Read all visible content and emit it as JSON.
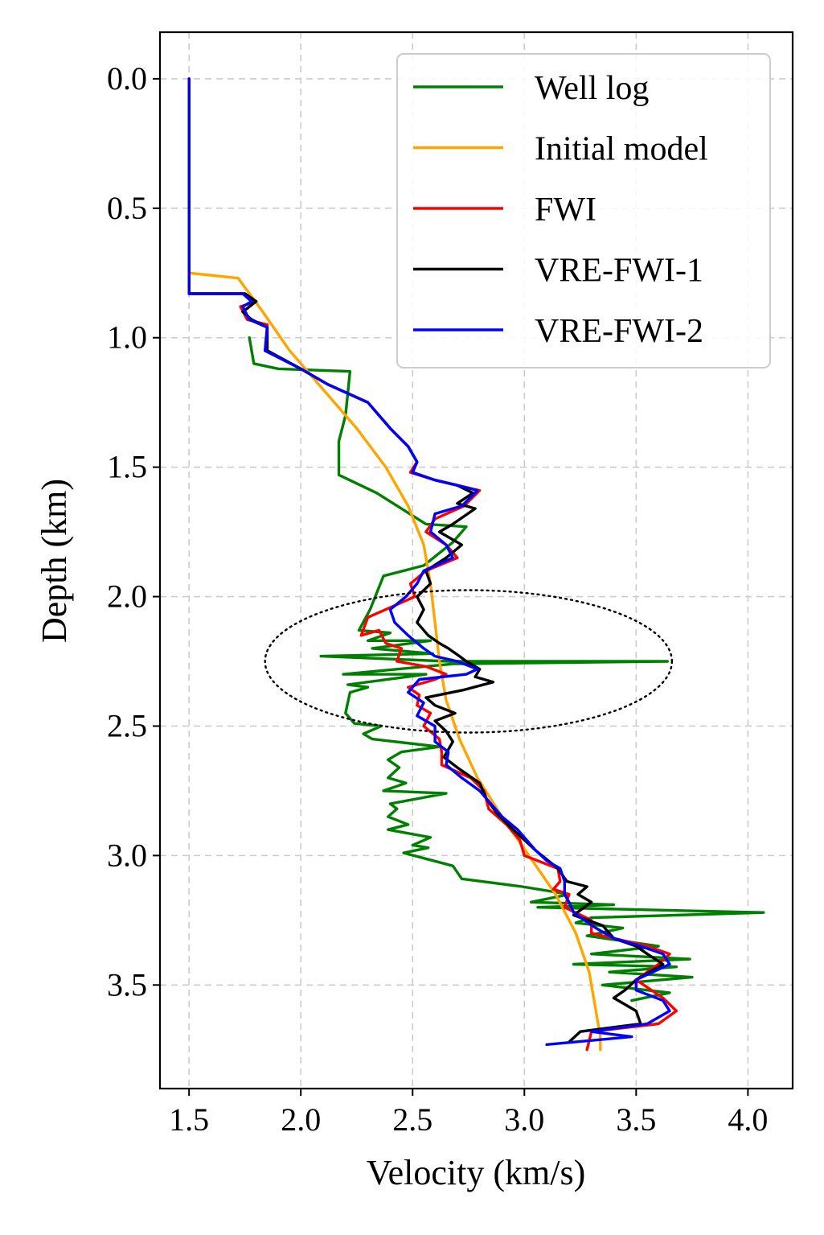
{
  "chart_data": {
    "type": "line",
    "title": "",
    "xlabel": "Velocity (km/s)",
    "ylabel": "Depth (km)",
    "xlim": [
      1.37,
      4.2
    ],
    "ylim": [
      3.9,
      -0.18
    ],
    "xticks": [
      1.5,
      2.0,
      2.5,
      3.0,
      3.5,
      4.0
    ],
    "xtick_labels": [
      "1.5",
      "2.0",
      "2.5",
      "3.0",
      "3.5",
      "4.0"
    ],
    "yticks": [
      0.0,
      0.5,
      1.0,
      1.5,
      2.0,
      2.5,
      3.0,
      3.5
    ],
    "ytick_labels": [
      "0.0",
      "0.5",
      "1.0",
      "1.5",
      "2.0",
      "2.5",
      "3.0",
      "3.5"
    ],
    "grid": true,
    "legend_position": "top-right",
    "annotation": {
      "type": "dotted-ellipse",
      "center_x": 2.75,
      "center_y": 2.25,
      "radius_x": 0.91,
      "radius_y": 0.275
    },
    "series": [
      {
        "name": "Well log",
        "color": "#008000",
        "points": [
          [
            1.77,
            1.0
          ],
          [
            1.79,
            1.1
          ],
          [
            1.9,
            1.12
          ],
          [
            2.22,
            1.13
          ],
          [
            2.2,
            1.3
          ],
          [
            2.17,
            1.4
          ],
          [
            2.17,
            1.53
          ],
          [
            2.34,
            1.6
          ],
          [
            2.56,
            1.72
          ],
          [
            2.74,
            1.73
          ],
          [
            2.68,
            1.79
          ],
          [
            2.55,
            1.88
          ],
          [
            2.37,
            1.92
          ],
          [
            2.31,
            2.05
          ],
          [
            2.26,
            2.13
          ],
          [
            2.4,
            2.14
          ],
          [
            2.3,
            2.17
          ],
          [
            2.58,
            2.17
          ],
          [
            2.32,
            2.2
          ],
          [
            2.59,
            2.22
          ],
          [
            2.09,
            2.23
          ],
          [
            2.66,
            2.25
          ],
          [
            3.64,
            2.25
          ],
          [
            2.68,
            2.26
          ],
          [
            2.19,
            2.3
          ],
          [
            2.56,
            2.3
          ],
          [
            2.21,
            2.34
          ],
          [
            2.3,
            2.35
          ],
          [
            2.22,
            2.37
          ],
          [
            2.2,
            2.45
          ],
          [
            2.24,
            2.49
          ],
          [
            2.36,
            2.5
          ],
          [
            2.28,
            2.53
          ],
          [
            2.32,
            2.55
          ],
          [
            2.62,
            2.58
          ],
          [
            2.45,
            2.6
          ],
          [
            2.39,
            2.63
          ],
          [
            2.44,
            2.66
          ],
          [
            2.39,
            2.7
          ],
          [
            2.47,
            2.72
          ],
          [
            2.37,
            2.75
          ],
          [
            2.65,
            2.76
          ],
          [
            2.4,
            2.8
          ],
          [
            2.43,
            2.82
          ],
          [
            2.39,
            2.85
          ],
          [
            2.48,
            2.88
          ],
          [
            2.39,
            2.9
          ],
          [
            2.58,
            2.93
          ],
          [
            2.5,
            2.96
          ],
          [
            2.57,
            2.97
          ],
          [
            2.46,
            2.99
          ],
          [
            2.68,
            3.04
          ],
          [
            2.72,
            3.09
          ],
          [
            2.99,
            3.12
          ],
          [
            3.2,
            3.15
          ],
          [
            3.03,
            3.18
          ],
          [
            3.4,
            3.19
          ],
          [
            3.06,
            3.2
          ],
          [
            4.07,
            3.22
          ],
          [
            3.3,
            3.24
          ],
          [
            3.23,
            3.26
          ],
          [
            3.44,
            3.28
          ],
          [
            3.28,
            3.31
          ],
          [
            3.6,
            3.35
          ],
          [
            3.3,
            3.38
          ],
          [
            3.74,
            3.4
          ],
          [
            3.22,
            3.42
          ],
          [
            3.68,
            3.43
          ],
          [
            3.38,
            3.45
          ],
          [
            3.75,
            3.47
          ],
          [
            3.35,
            3.5
          ],
          [
            3.65,
            3.53
          ],
          [
            3.48,
            3.56
          ]
        ]
      },
      {
        "name": "Initial model",
        "color": "#FFA500",
        "points": [
          [
            1.5,
            0.75
          ],
          [
            1.72,
            0.77
          ],
          [
            1.83,
            0.9
          ],
          [
            1.95,
            1.05
          ],
          [
            2.1,
            1.2
          ],
          [
            2.25,
            1.35
          ],
          [
            2.38,
            1.5
          ],
          [
            2.48,
            1.65
          ],
          [
            2.55,
            1.8
          ],
          [
            2.58,
            1.95
          ],
          [
            2.6,
            2.1
          ],
          [
            2.62,
            2.25
          ],
          [
            2.65,
            2.4
          ],
          [
            2.71,
            2.55
          ],
          [
            2.79,
            2.7
          ],
          [
            2.9,
            2.85
          ],
          [
            3.02,
            3.0
          ],
          [
            3.14,
            3.15
          ],
          [
            3.23,
            3.3
          ],
          [
            3.29,
            3.45
          ],
          [
            3.32,
            3.6
          ],
          [
            3.34,
            3.7
          ],
          [
            3.34,
            3.75
          ]
        ]
      },
      {
        "name": "FWI",
        "color": "#FF0000",
        "points": [
          [
            1.5,
            0.0
          ],
          [
            1.5,
            0.83
          ],
          [
            1.75,
            0.83
          ],
          [
            1.8,
            0.86
          ],
          [
            1.73,
            0.88
          ],
          [
            1.76,
            0.93
          ],
          [
            1.85,
            0.95
          ],
          [
            1.84,
            1.05
          ],
          [
            2.0,
            1.12
          ],
          [
            2.12,
            1.18
          ],
          [
            2.3,
            1.25
          ],
          [
            2.4,
            1.35
          ],
          [
            2.48,
            1.42
          ],
          [
            2.52,
            1.48
          ],
          [
            2.49,
            1.52
          ],
          [
            2.6,
            1.55
          ],
          [
            2.7,
            1.57
          ],
          [
            2.8,
            1.59
          ],
          [
            2.73,
            1.65
          ],
          [
            2.6,
            1.7
          ],
          [
            2.56,
            1.75
          ],
          [
            2.65,
            1.8
          ],
          [
            2.7,
            1.85
          ],
          [
            2.56,
            1.9
          ],
          [
            2.49,
            1.95
          ],
          [
            2.51,
            2.0
          ],
          [
            2.38,
            2.05
          ],
          [
            2.3,
            2.08
          ],
          [
            2.27,
            2.15
          ],
          [
            2.35,
            2.13
          ],
          [
            2.38,
            2.18
          ],
          [
            2.45,
            2.2
          ],
          [
            2.43,
            2.25
          ],
          [
            2.56,
            2.27
          ],
          [
            2.65,
            2.3
          ],
          [
            2.6,
            2.32
          ],
          [
            2.48,
            2.35
          ],
          [
            2.53,
            2.38
          ],
          [
            2.52,
            2.42
          ],
          [
            2.58,
            2.45
          ],
          [
            2.55,
            2.5
          ],
          [
            2.62,
            2.55
          ],
          [
            2.63,
            2.6
          ],
          [
            2.63,
            2.65
          ],
          [
            2.76,
            2.7
          ],
          [
            2.82,
            2.75
          ],
          [
            2.84,
            2.82
          ],
          [
            2.92,
            2.88
          ],
          [
            2.98,
            2.94
          ],
          [
            3.0,
            3.0
          ],
          [
            3.15,
            3.05
          ],
          [
            3.16,
            3.1
          ],
          [
            3.13,
            3.13
          ],
          [
            3.2,
            3.15
          ],
          [
            3.18,
            3.2
          ],
          [
            3.3,
            3.25
          ],
          [
            3.3,
            3.3
          ],
          [
            3.4,
            3.32
          ],
          [
            3.55,
            3.35
          ],
          [
            3.65,
            3.38
          ],
          [
            3.6,
            3.42
          ],
          [
            3.5,
            3.48
          ],
          [
            3.62,
            3.55
          ],
          [
            3.68,
            3.6
          ],
          [
            3.6,
            3.65
          ],
          [
            3.3,
            3.68
          ],
          [
            3.28,
            3.75
          ]
        ]
      },
      {
        "name": "VRE-FWI-1",
        "color": "#000000",
        "points": [
          [
            1.5,
            0.0
          ],
          [
            1.5,
            0.83
          ],
          [
            1.75,
            0.83
          ],
          [
            1.8,
            0.86
          ],
          [
            1.74,
            0.9
          ],
          [
            1.78,
            0.93
          ],
          [
            1.85,
            0.96
          ],
          [
            1.85,
            1.05
          ],
          [
            2.0,
            1.12
          ],
          [
            2.12,
            1.18
          ],
          [
            2.3,
            1.25
          ],
          [
            2.4,
            1.35
          ],
          [
            2.48,
            1.42
          ],
          [
            2.52,
            1.48
          ],
          [
            2.5,
            1.52
          ],
          [
            2.6,
            1.55
          ],
          [
            2.7,
            1.57
          ],
          [
            2.77,
            1.6
          ],
          [
            2.7,
            1.64
          ],
          [
            2.78,
            1.66
          ],
          [
            2.68,
            1.72
          ],
          [
            2.62,
            1.75
          ],
          [
            2.72,
            1.8
          ],
          [
            2.65,
            1.85
          ],
          [
            2.56,
            1.9
          ],
          [
            2.58,
            1.95
          ],
          [
            2.52,
            2.0
          ],
          [
            2.55,
            2.05
          ],
          [
            2.52,
            2.1
          ],
          [
            2.57,
            2.15
          ],
          [
            2.62,
            2.18
          ],
          [
            2.66,
            2.2
          ],
          [
            2.71,
            2.23
          ],
          [
            2.74,
            2.25
          ],
          [
            2.8,
            2.28
          ],
          [
            2.78,
            2.31
          ],
          [
            2.86,
            2.33
          ],
          [
            2.73,
            2.36
          ],
          [
            2.56,
            2.39
          ],
          [
            2.6,
            2.42
          ],
          [
            2.69,
            2.45
          ],
          [
            2.6,
            2.48
          ],
          [
            2.65,
            2.52
          ],
          [
            2.68,
            2.56
          ],
          [
            2.64,
            2.62
          ],
          [
            2.7,
            2.66
          ],
          [
            2.8,
            2.72
          ],
          [
            2.83,
            2.78
          ],
          [
            2.88,
            2.84
          ],
          [
            2.95,
            2.9
          ],
          [
            3.05,
            2.98
          ],
          [
            3.15,
            3.05
          ],
          [
            3.19,
            3.1
          ],
          [
            3.28,
            3.12
          ],
          [
            3.24,
            3.15
          ],
          [
            3.3,
            3.18
          ],
          [
            3.22,
            3.23
          ],
          [
            3.35,
            3.27
          ],
          [
            3.4,
            3.32
          ],
          [
            3.5,
            3.35
          ],
          [
            3.55,
            3.38
          ],
          [
            3.62,
            3.42
          ],
          [
            3.5,
            3.48
          ],
          [
            3.45,
            3.52
          ],
          [
            3.4,
            3.55
          ],
          [
            3.5,
            3.6
          ],
          [
            3.52,
            3.65
          ],
          [
            3.25,
            3.68
          ],
          [
            3.2,
            3.72
          ]
        ]
      },
      {
        "name": "VRE-FWI-2",
        "color": "#0000FF",
        "points": [
          [
            1.5,
            0.0
          ],
          [
            1.5,
            0.83
          ],
          [
            1.74,
            0.83
          ],
          [
            1.78,
            0.86
          ],
          [
            1.74,
            0.88
          ],
          [
            1.77,
            0.93
          ],
          [
            1.85,
            0.96
          ],
          [
            1.84,
            1.05
          ],
          [
            2.0,
            1.12
          ],
          [
            2.12,
            1.18
          ],
          [
            2.3,
            1.25
          ],
          [
            2.4,
            1.35
          ],
          [
            2.48,
            1.42
          ],
          [
            2.52,
            1.48
          ],
          [
            2.5,
            1.52
          ],
          [
            2.6,
            1.55
          ],
          [
            2.7,
            1.57
          ],
          [
            2.79,
            1.59
          ],
          [
            2.72,
            1.65
          ],
          [
            2.6,
            1.68
          ],
          [
            2.58,
            1.75
          ],
          [
            2.65,
            1.8
          ],
          [
            2.68,
            1.85
          ],
          [
            2.55,
            1.9
          ],
          [
            2.52,
            1.95
          ],
          [
            2.47,
            2.0
          ],
          [
            2.4,
            2.05
          ],
          [
            2.42,
            2.1
          ],
          [
            2.48,
            2.15
          ],
          [
            2.55,
            2.2
          ],
          [
            2.6,
            2.23
          ],
          [
            2.7,
            2.25
          ],
          [
            2.79,
            2.28
          ],
          [
            2.74,
            2.3
          ],
          [
            2.53,
            2.32
          ],
          [
            2.48,
            2.37
          ],
          [
            2.55,
            2.41
          ],
          [
            2.52,
            2.46
          ],
          [
            2.6,
            2.5
          ],
          [
            2.6,
            2.56
          ],
          [
            2.66,
            2.6
          ],
          [
            2.65,
            2.65
          ],
          [
            2.72,
            2.7
          ],
          [
            2.8,
            2.75
          ],
          [
            2.85,
            2.8
          ],
          [
            2.9,
            2.85
          ],
          [
            2.97,
            2.9
          ],
          [
            3.05,
            2.98
          ],
          [
            3.1,
            3.02
          ],
          [
            3.16,
            3.05
          ],
          [
            3.18,
            3.1
          ],
          [
            3.18,
            3.15
          ],
          [
            3.2,
            3.18
          ],
          [
            3.22,
            3.22
          ],
          [
            3.32,
            3.28
          ],
          [
            3.4,
            3.32
          ],
          [
            3.52,
            3.35
          ],
          [
            3.62,
            3.38
          ],
          [
            3.65,
            3.42
          ],
          [
            3.5,
            3.48
          ],
          [
            3.5,
            3.52
          ],
          [
            3.62,
            3.56
          ],
          [
            3.65,
            3.6
          ],
          [
            3.55,
            3.65
          ],
          [
            3.3,
            3.68
          ],
          [
            3.48,
            3.7
          ],
          [
            3.1,
            3.73
          ]
        ]
      }
    ]
  }
}
